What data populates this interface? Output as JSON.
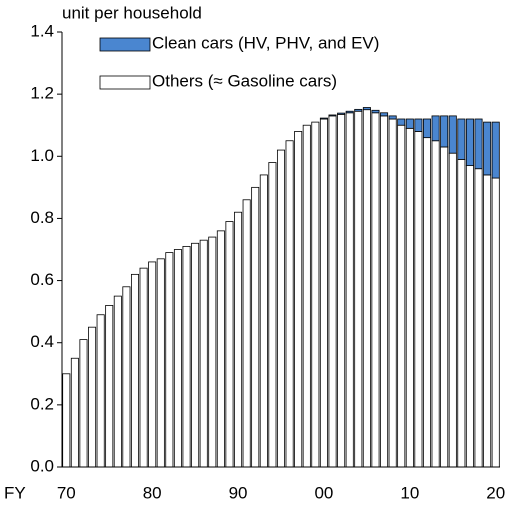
{
  "chart_data": {
    "type": "stacked_bar",
    "y_label": "unit per household",
    "x_label": "FY",
    "categories": [
      "70",
      null,
      null,
      null,
      null,
      null,
      null,
      null,
      null,
      null,
      "80",
      null,
      null,
      null,
      null,
      null,
      null,
      null,
      null,
      null,
      "90",
      null,
      null,
      null,
      null,
      null,
      null,
      null,
      null,
      null,
      "00",
      null,
      null,
      null,
      null,
      null,
      null,
      null,
      null,
      null,
      "10",
      null,
      null,
      null,
      null,
      null,
      null,
      null,
      null,
      null,
      "20"
    ],
    "series": [
      {
        "name": "Others (≈ Gasoline cars)",
        "color": "#ffffff",
        "values": [
          0.3,
          0.35,
          0.41,
          0.45,
          0.49,
          0.52,
          0.55,
          0.58,
          0.62,
          0.64,
          0.66,
          0.67,
          0.69,
          0.7,
          0.71,
          0.72,
          0.73,
          0.74,
          0.76,
          0.79,
          0.82,
          0.86,
          0.9,
          0.94,
          0.98,
          1.02,
          1.05,
          1.08,
          1.1,
          1.11,
          1.12,
          1.13,
          1.135,
          1.14,
          1.145,
          1.15,
          1.14,
          1.13,
          1.12,
          1.1,
          1.09,
          1.08,
          1.06,
          1.05,
          1.03,
          1.01,
          0.99,
          0.97,
          0.96,
          0.94,
          0.93
        ]
      },
      {
        "name": "Clean cars (HV, PHV, and EV)",
        "color": "#4a86d0",
        "values": [
          0,
          0,
          0,
          0,
          0,
          0,
          0,
          0,
          0,
          0,
          0,
          0,
          0,
          0,
          0,
          0,
          0,
          0,
          0,
          0,
          0,
          0,
          0,
          0,
          0,
          0,
          0,
          0,
          0,
          0,
          0.003,
          0.003,
          0.004,
          0.005,
          0.006,
          0.007,
          0.008,
          0.01,
          0.01,
          0.02,
          0.03,
          0.04,
          0.06,
          0.08,
          0.1,
          0.12,
          0.13,
          0.15,
          0.16,
          0.17,
          0.18
        ]
      }
    ],
    "ylim": [
      0,
      1.4
    ],
    "yticks": [
      {
        "value": 0,
        "label": "0.0"
      },
      0.2,
      0.4,
      0.6,
      0.8,
      {
        "value": 1,
        "label": "1.0"
      },
      1.2,
      1.4
    ],
    "grid": false,
    "legend": "top-left"
  }
}
